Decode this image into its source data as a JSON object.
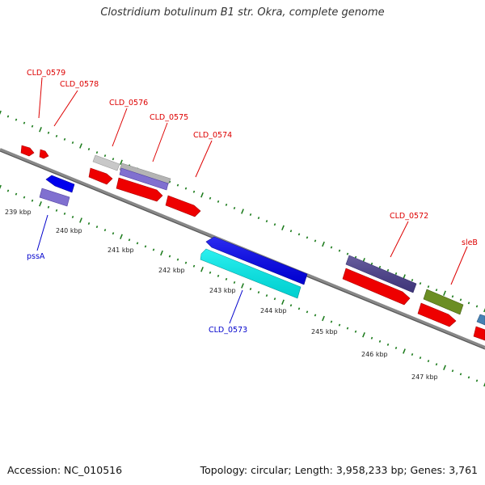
{
  "title": "Clostridium botulinum B1 str. Okra, complete genome",
  "footer": {
    "accession": "Accession: NC_010516",
    "stats": "Topology: circular; Length: 3,958,233 bp; Genes: 3,761"
  },
  "colors": {
    "label_forward": "#dd0000",
    "label_reverse": "#0000cc",
    "backbone": "#808080",
    "tick": "#1a7a1a"
  },
  "scale_labels": [
    "239 kbp",
    "240 kbp",
    "241 kbp",
    "242 kbp",
    "243 kbp",
    "244 kbp",
    "245 kbp",
    "246 kbp",
    "247 kbp"
  ],
  "gene_labels": {
    "forward": [
      "CLD_0579",
      "CLD_0578",
      "CLD_0576",
      "CLD_0575",
      "CLD_0574",
      "CLD_0572",
      "sleB"
    ],
    "reverse": [
      "pssA",
      "CLD_0573"
    ]
  },
  "features": [
    {
      "name": "top-red-arrow-1",
      "color": "#ee0000"
    },
    {
      "name": "top-red-arrow-2",
      "color": "#ee0000"
    },
    {
      "name": "gray-gene",
      "color": "#c8c8c8"
    },
    {
      "name": "silver-gene",
      "color": "#b4b4b4"
    },
    {
      "name": "lavender-gene",
      "color": "#8070d0"
    },
    {
      "name": "red-cds",
      "color": "#ee0000"
    },
    {
      "name": "blue-gene",
      "color": "#0000ee"
    },
    {
      "name": "cyan-gene",
      "color": "#00eeee"
    },
    {
      "name": "darkslate-gene",
      "color": "#483d8b"
    },
    {
      "name": "olive-gene",
      "color": "#6b8e23"
    },
    {
      "name": "steelblue-gene",
      "color": "#4682b4"
    }
  ]
}
